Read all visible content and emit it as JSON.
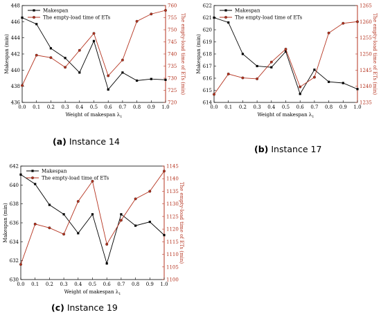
{
  "chart_data": [
    {
      "type": "line",
      "caption_letter": "(a)",
      "caption_text": "Instance 14",
      "xlabel": "Weight of makespan λ",
      "xlabel_sub": "1",
      "ylabel": "Makespan (min)",
      "y2label": "The empty-load time of ETs (min)",
      "x": [
        0.0,
        0.1,
        0.2,
        0.3,
        0.4,
        0.5,
        0.6,
        0.7,
        0.8,
        0.9,
        1.0
      ],
      "x_ticks": [
        "0.0",
        "0.1",
        "0.2",
        "0.3",
        "0.4",
        "0.5",
        "0.6",
        "0.7",
        "0.8",
        "0.9",
        "1.0"
      ],
      "xlim": [
        0,
        1
      ],
      "ylim": [
        436,
        448
      ],
      "y_ticks": [
        "436",
        "438",
        "440",
        "442",
        "444",
        "446",
        "448"
      ],
      "y2lim": [
        720,
        760
      ],
      "y2_ticks": [
        "720",
        "725",
        "730",
        "735",
        "740",
        "745",
        "750",
        "755",
        "760"
      ],
      "legend_position": "top-left",
      "series": [
        {
          "name": "Makespan",
          "axis": "left",
          "color": "#000000",
          "marker": "square",
          "values": [
            446.5,
            445.7,
            442.7,
            441.5,
            439.7,
            443.6,
            437.6,
            439.7,
            438.7,
            438.9,
            438.8
          ]
        },
        {
          "name": "The empty-load time of  ETs",
          "axis": "right",
          "color": "#b5331f",
          "marker": "circle",
          "values": [
            727,
            739.5,
            738.5,
            734.5,
            741.5,
            748.5,
            731,
            737.5,
            753.5,
            756.5,
            758
          ]
        }
      ]
    },
    {
      "type": "line",
      "caption_letter": "(b)",
      "caption_text": "Instance 17",
      "xlabel": "Weight of makespan λ",
      "xlabel_sub": "1",
      "ylabel": "Makespan (min)",
      "y2label": "The empty-load time of ETs (min)",
      "x": [
        0.0,
        0.1,
        0.2,
        0.3,
        0.4,
        0.5,
        0.6,
        0.7,
        0.8,
        0.9,
        1.0
      ],
      "x_ticks": [
        "0.0",
        "0.1",
        "0.2",
        "0.3",
        "0.4",
        "0.5",
        "0.6",
        "0.7",
        "0.8",
        "0.9",
        "1.0"
      ],
      "xlim": [
        0,
        1
      ],
      "ylim": [
        614,
        622
      ],
      "y_ticks": [
        "614",
        "615",
        "616",
        "617",
        "618",
        "619",
        "620",
        "621",
        "622"
      ],
      "y2lim": [
        1235,
        1265
      ],
      "y2_ticks": [
        "1235",
        "1240",
        "1245",
        "1250",
        "1255",
        "1260",
        "1265"
      ],
      "legend_position": "top-left",
      "series": [
        {
          "name": "Makespan",
          "axis": "left",
          "color": "#000000",
          "marker": "square",
          "values": [
            621.0,
            620.6,
            618.0,
            617.0,
            616.9,
            618.2,
            614.7,
            616.7,
            615.7,
            615.6,
            615.1
          ]
        },
        {
          "name": "The empty-load time of  ETs",
          "axis": "right",
          "color": "#b5331f",
          "marker": "circle",
          "values": [
            1237.5,
            1243.8,
            1242.6,
            1242.3,
            1247.5,
            1251.5,
            1239.8,
            1242.8,
            1256.5,
            1259.5,
            1260
          ]
        }
      ]
    },
    {
      "type": "line",
      "caption_letter": "(c)",
      "caption_text": "Instance 19",
      "xlabel": "Weight of makespan λ",
      "xlabel_sub": "1",
      "ylabel": "Makespan (min)",
      "y2label": "The empty-load time of ETs (min)",
      "x": [
        0.0,
        0.1,
        0.2,
        0.3,
        0.4,
        0.5,
        0.6,
        0.7,
        0.8,
        0.9,
        1.0
      ],
      "x_ticks": [
        "0.0",
        "0.1",
        "0.2",
        "0.3",
        "0.4",
        "0.5",
        "0.6",
        "0.7",
        "0.8",
        "0.9",
        "1.0"
      ],
      "xlim": [
        0,
        1
      ],
      "ylim": [
        630,
        642
      ],
      "y_ticks": [
        "630",
        "632",
        "634",
        "636",
        "638",
        "640",
        "642"
      ],
      "y2lim": [
        1100,
        1145
      ],
      "y2_ticks": [
        "1100",
        "1105",
        "1110",
        "1115",
        "1120",
        "1125",
        "1130",
        "1135",
        "1140",
        "1145"
      ],
      "legend_position": "top-left",
      "series": [
        {
          "name": "Makespan",
          "axis": "left",
          "color": "#000000",
          "marker": "square",
          "values": [
            641.1,
            640.1,
            637.9,
            636.9,
            634.9,
            636.9,
            631.7,
            636.9,
            635.7,
            636.1,
            634.7
          ]
        },
        {
          "name": "The empty-load time of  ETs",
          "axis": "right",
          "color": "#b5331f",
          "marker": "circle",
          "values": [
            1106,
            1122,
            1120.5,
            1118,
            1131,
            1139,
            1114,
            1123.5,
            1132,
            1135,
            1143
          ]
        }
      ]
    }
  ]
}
